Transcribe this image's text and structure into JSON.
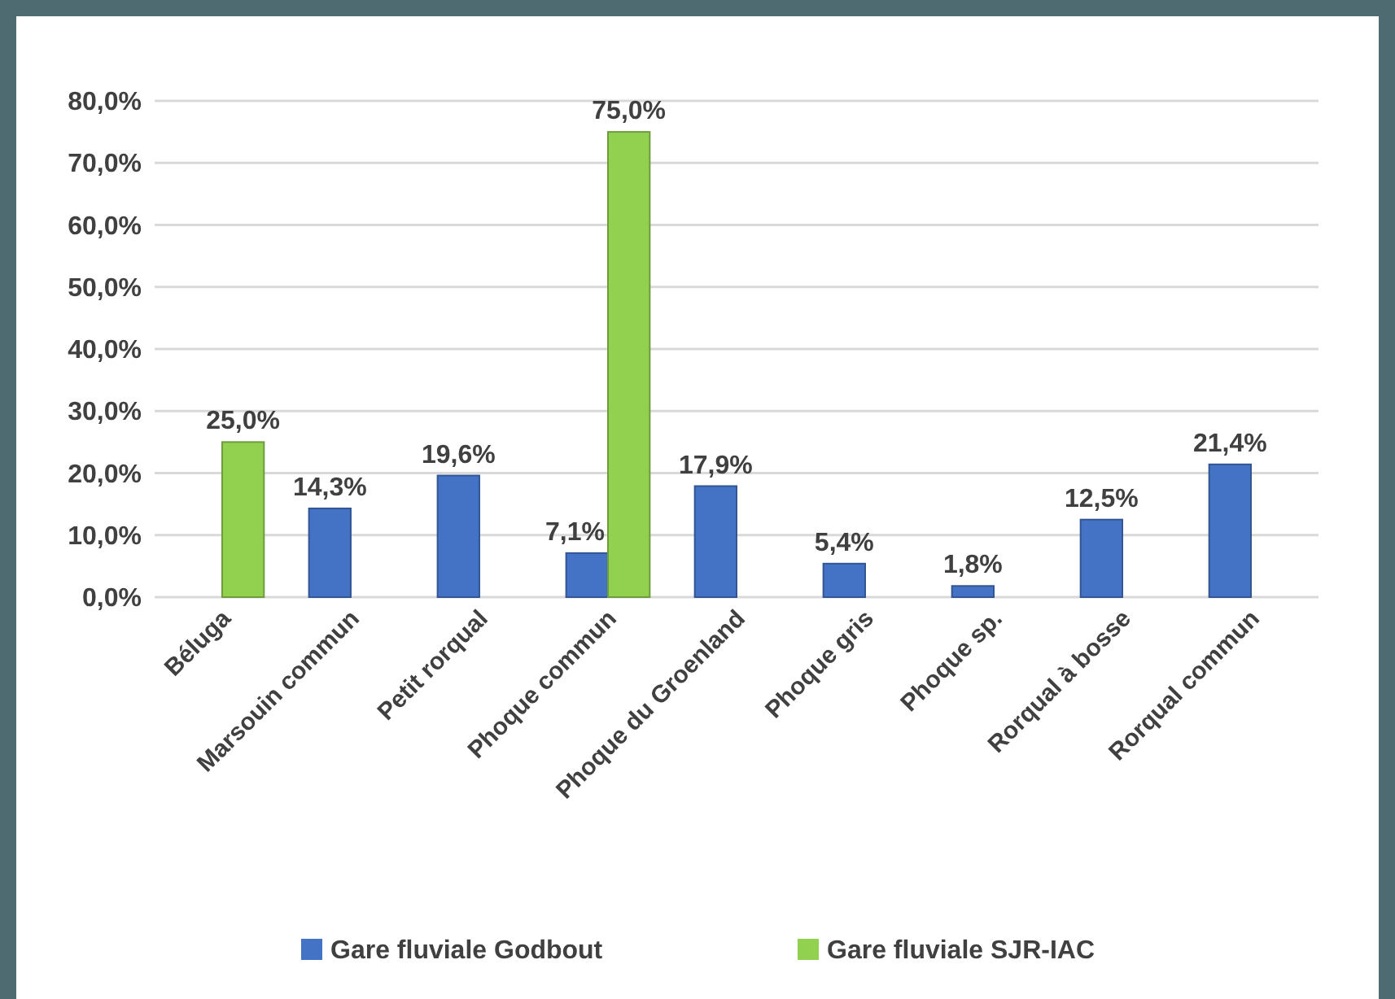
{
  "chart_data": {
    "type": "bar",
    "categories": [
      "Béluga",
      "Marsouin commun",
      "Petit rorqual",
      "Phoque commun",
      "Phoque du Groenland",
      "Phoque gris",
      "Phoque sp.",
      "Rorqual à bosse",
      "Rorqual commun"
    ],
    "series": [
      {
        "name": "Gare fluviale Godbout",
        "color": "#4472c4",
        "values": [
          0,
          14.3,
          19.6,
          7.1,
          17.9,
          5.4,
          1.8,
          12.5,
          21.4
        ],
        "value_labels": [
          null,
          "14,3%",
          "19,6%",
          "7,1%",
          "17,9%",
          "5,4%",
          "1,8%",
          "12,5%",
          "21,4%"
        ]
      },
      {
        "name": "Gare fluviale SJR-IAC",
        "color": "#92d050",
        "values": [
          25,
          0,
          0,
          75,
          0,
          0,
          0,
          0,
          0
        ],
        "value_labels": [
          "25,0%",
          null,
          null,
          "75,0%",
          null,
          null,
          null,
          null,
          null
        ]
      }
    ],
    "ylim": [
      0,
      80
    ],
    "yticks": [
      {
        "value": 0,
        "label": "0,0%"
      },
      {
        "value": 10,
        "label": "10,0%"
      },
      {
        "value": 20,
        "label": "20,0%"
      },
      {
        "value": 30,
        "label": "30,0%"
      },
      {
        "value": 40,
        "label": "40,0%"
      },
      {
        "value": 50,
        "label": "50,0%"
      },
      {
        "value": 60,
        "label": "60,0%"
      },
      {
        "value": 70,
        "label": "70,0%"
      },
      {
        "value": 80,
        "label": "80,0%"
      }
    ],
    "grid": "y",
    "legend": "bottom"
  }
}
